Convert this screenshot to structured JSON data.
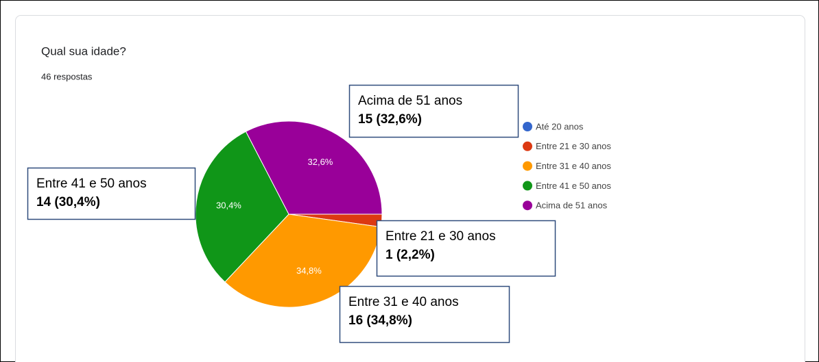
{
  "chart_data": {
    "type": "pie",
    "title": "Qual sua idade?",
    "subtitle": "46 respostas",
    "categories": [
      "Até 20 anos",
      "Entre 21 e 30 anos",
      "Entre 31 e 40 anos",
      "Entre 41 e 50 anos",
      "Acima de 51 anos"
    ],
    "values": [
      0,
      2.2,
      34.8,
      30.4,
      32.6
    ],
    "value_labels": [
      null,
      null,
      "34,8%",
      "30,4%",
      "32,6%"
    ],
    "callout_labels": [
      null,
      "1 (2,2%)",
      "16 (34,8%)",
      "14 (30,4%)",
      "15 (32,6%)"
    ],
    "colors": [
      "#3366cc",
      "#dc3912",
      "#ff9900",
      "#109618",
      "#990099"
    ],
    "legend": "right"
  }
}
